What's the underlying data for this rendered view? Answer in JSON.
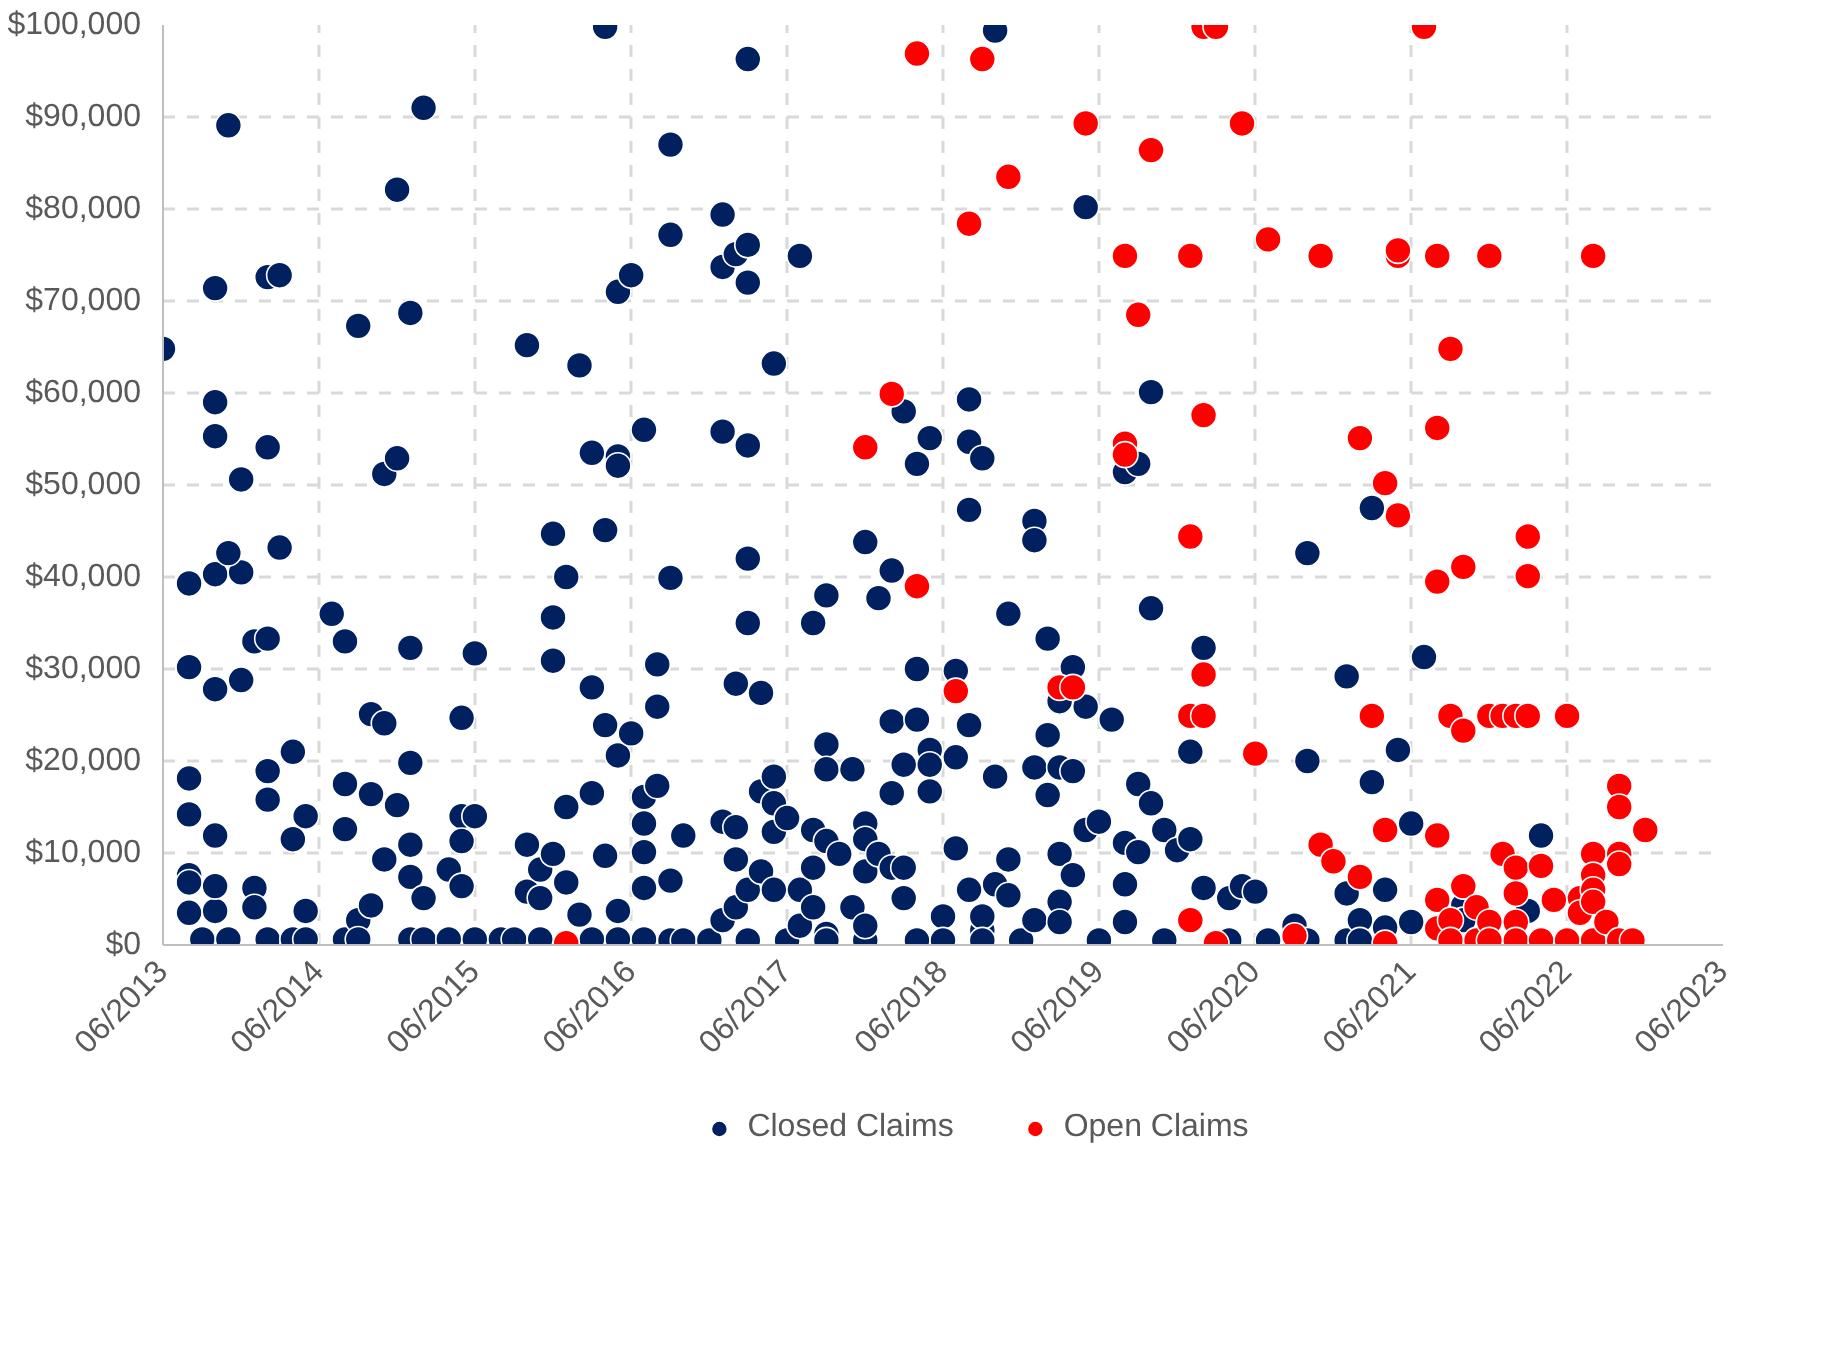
{
  "chart_data": {
    "type": "scatter",
    "xlim": [
      "2013-06",
      "2023-06"
    ],
    "xticks": [
      {
        "value": "2013-06",
        "label": "06/2013"
      },
      {
        "value": "2014-06",
        "label": "06/2014"
      },
      {
        "value": "2015-06",
        "label": "06/2015"
      },
      {
        "value": "2016-06",
        "label": "06/2016"
      },
      {
        "value": "2017-06",
        "label": "06/2017"
      },
      {
        "value": "2018-06",
        "label": "06/2018"
      },
      {
        "value": "2019-06",
        "label": "06/2019"
      },
      {
        "value": "2020-06",
        "label": "06/2020"
      },
      {
        "value": "2021-06",
        "label": "06/2021"
      },
      {
        "value": "2022-06",
        "label": "06/2022"
      },
      {
        "value": "2023-06",
        "label": "06/2023"
      }
    ],
    "ylim": [
      0,
      100000
    ],
    "yticks": [
      {
        "value": 0,
        "label": "$0"
      },
      {
        "value": 10000,
        "label": "$10,000"
      },
      {
        "value": 20000,
        "label": "$20,000"
      },
      {
        "value": 30000,
        "label": "$30,000"
      },
      {
        "value": 40000,
        "label": "$40,000"
      },
      {
        "value": 50000,
        "label": "$50,000"
      },
      {
        "value": 60000,
        "label": "$60,000"
      },
      {
        "value": 70000,
        "label": "$70,000"
      },
      {
        "value": 80000,
        "label": "$80,000"
      },
      {
        "value": 90000,
        "label": "$90,000"
      },
      {
        "value": 100000,
        "label": "$100,000"
      }
    ],
    "grid": true,
    "legend": "bottom",
    "marker": "circle",
    "series": [
      {
        "name": "Closed Claims",
        "color": "#002060",
        "x": [
          "2013-06",
          "2013-08",
          "2013-08",
          "2013-08",
          "2013-08",
          "2013-08",
          "2013-08",
          "2013-08",
          "2013-09",
          "2013-10",
          "2013-10",
          "2013-10",
          "2013-10",
          "2013-10",
          "2013-10",
          "2013-10",
          "2013-10",
          "2013-11",
          "2013-11",
          "2013-12",
          "2013-11",
          "2013-12",
          "2013-12",
          "2014-01",
          "2014-01",
          "2014-01",
          "2014-02",
          "2014-02",
          "2014-02",
          "2014-02",
          "2014-02",
          "2014-02",
          "2014-03",
          "2014-03",
          "2014-04",
          "2014-04",
          "2014-04",
          "2014-05",
          "2014-05",
          "2014-05",
          "2014-07",
          "2014-08",
          "2014-08",
          "2014-08",
          "2014-08",
          "2014-09",
          "2014-09",
          "2014-09",
          "2014-10",
          "2014-10",
          "2014-10",
          "2014-11",
          "2014-11",
          "2014-11",
          "2014-12",
          "2014-12",
          "2014-12",
          "2015-01",
          "2015-01",
          "2015-01",
          "2015-01",
          "2015-01",
          "2015-01",
          "2015-02",
          "2015-02",
          "2015-02",
          "2015-04",
          "2015-04",
          "2015-05",
          "2015-05",
          "2015-05",
          "2015-05",
          "2015-06",
          "2015-06",
          "2015-06",
          "2015-08",
          "2015-09",
          "2015-10",
          "2015-10",
          "2015-10",
          "2015-11",
          "2015-11",
          "2015-11",
          "2015-12",
          "2015-12",
          "2015-12",
          "2015-12",
          "2016-01",
          "2016-01",
          "2016-01",
          "2016-02",
          "2016-02",
          "2016-03",
          "2016-03",
          "2016-03",
          "2016-03",
          "2016-04",
          "2016-04",
          "2016-04",
          "2016-04",
          "2016-05",
          "2016-05",
          "2016-05",
          "2016-05",
          "2016-05",
          "2016-05",
          "2016-06",
          "2016-06",
          "2016-07",
          "2016-07",
          "2016-07",
          "2016-07",
          "2016-07",
          "2016-07",
          "2016-08",
          "2016-08",
          "2016-08",
          "2016-09",
          "2016-09",
          "2016-09",
          "2016-09",
          "2016-09",
          "2016-10",
          "2016-10",
          "2016-12",
          "2017-01",
          "2017-01",
          "2017-01",
          "2017-01",
          "2017-01",
          "2017-02",
          "2017-02",
          "2017-02",
          "2017-02",
          "2017-02",
          "2017-03",
          "2017-03",
          "2017-03",
          "2017-03",
          "2017-03",
          "2017-03",
          "2017-03",
          "2017-03",
          "2017-04",
          "2017-04",
          "2017-04",
          "2017-05",
          "2017-05",
          "2017-05",
          "2017-05",
          "2017-05",
          "2017-06",
          "2017-06",
          "2017-07",
          "2017-07",
          "2017-07",
          "2017-08",
          "2017-08",
          "2017-08",
          "2017-08",
          "2017-09",
          "2017-09",
          "2017-09",
          "2017-09",
          "2017-09",
          "2017-09",
          "2017-10",
          "2017-11",
          "2017-11",
          "2017-12",
          "2017-12",
          "2017-12",
          "2017-12",
          "2017-12",
          "2017-12",
          "2018-01",
          "2018-01",
          "2018-02",
          "2018-02",
          "2018-02",
          "2018-02",
          "2018-03",
          "2018-03",
          "2018-03",
          "2018-03",
          "2018-04",
          "2018-04",
          "2018-04",
          "2018-04",
          "2018-05",
          "2018-05",
          "2018-05",
          "2018-05",
          "2018-06",
          "2018-06",
          "2018-07",
          "2018-07",
          "2018-07",
          "2018-08",
          "2018-08",
          "2018-08",
          "2018-08",
          "2018-08",
          "2018-09",
          "2018-09",
          "2018-09",
          "2018-09",
          "2018-10",
          "2018-10",
          "2018-10",
          "2018-11",
          "2018-11",
          "2018-11",
          "2018-12",
          "2019-01",
          "2019-01",
          "2019-01",
          "2019-01",
          "2019-02",
          "2019-02",
          "2019-02",
          "2019-03",
          "2019-03",
          "2019-03",
          "2019-03",
          "2019-03",
          "2019-04",
          "2019-04",
          "2019-04",
          "2019-05",
          "2019-05",
          "2019-05",
          "2019-06",
          "2019-06",
          "2019-07",
          "2019-08",
          "2019-08",
          "2019-08",
          "2019-08",
          "2019-09",
          "2019-09",
          "2019-09",
          "2019-10",
          "2019-10",
          "2019-10",
          "2019-11",
          "2019-11",
          "2019-12",
          "2020-01",
          "2020-01",
          "2020-02",
          "2020-02",
          "2020-04",
          "2020-04",
          "2020-05",
          "2020-06",
          "2020-07",
          "2020-09",
          "2020-10",
          "2020-10",
          "2020-10",
          "2021-01",
          "2021-01",
          "2021-01",
          "2021-02",
          "2021-02",
          "2021-03",
          "2021-03",
          "2021-04",
          "2021-04",
          "2021-05",
          "2021-06",
          "2021-06",
          "2021-07",
          "2021-10",
          "2021-10",
          "2022-03",
          "2022-04"
        ],
        "values": [
          64800,
          39300,
          30200,
          18100,
          14200,
          7600,
          3500,
          6800,
          600,
          11900,
          40300,
          27800,
          3700,
          55300,
          59000,
          71400,
          6400,
          600,
          89100,
          40500,
          42600,
          50600,
          28800,
          6200,
          33000,
          4100,
          600,
          33300,
          54100,
          18900,
          72600,
          15800,
          43200,
          72800,
          21000,
          600,
          11500,
          14000,
          3700,
          600,
          36000,
          33000,
          17500,
          600,
          12600,
          67300,
          2700,
          600,
          25100,
          16400,
          4300,
          51200,
          9300,
          24100,
          82100,
          15200,
          52900,
          32300,
          19800,
          10900,
          600,
          68700,
          7400,
          5100,
          91000,
          600,
          8200,
          600,
          24700,
          14000,
          11300,
          6400,
          600,
          31700,
          14000,
          600,
          600,
          5800,
          65200,
          10900,
          8200,
          600,
          5100,
          9900,
          30900,
          35600,
          44700,
          40000,
          15000,
          6800,
          3300,
          63000,
          53500,
          600,
          28000,
          16500,
          9700,
          99800,
          45100,
          23900,
          53100,
          20600,
          52100,
          71000,
          3700,
          600,
          72800,
          23000,
          13200,
          16100,
          10100,
          6200,
          56000,
          600,
          30500,
          25900,
          17300,
          39900,
          77200,
          7000,
          500,
          87000,
          500,
          11900,
          500,
          79400,
          73700,
          2700,
          13400,
          55800,
          75100,
          4100,
          28400,
          9300,
          12800,
          76100,
          500,
          96300,
          35000,
          72000,
          42000,
          54300,
          6000,
          27400,
          16700,
          8000,
          63200,
          12300,
          6000,
          18300,
          15400,
          500,
          13800,
          2100,
          74900,
          6000,
          8400,
          35000,
          12500,
          4100,
          21800,
          19100,
          1200,
          38000,
          11300,
          500,
          9900,
          4100,
          19100,
          500,
          13200,
          8000,
          2100,
          43800,
          11500,
          37700,
          9900,
          24300,
          16500,
          40700,
          8400,
          58000,
          5100,
          8400,
          19600,
          500,
          30000,
          24500,
          52300,
          55100,
          21200,
          19600,
          16700,
          3100,
          500,
          10500,
          20400,
          29800,
          23900,
          59300,
          54700,
          47300,
          6000,
          1600,
          3100,
          500,
          52900,
          6600,
          99400,
          18300,
          9300,
          36000,
          5400,
          500,
          2700,
          46100,
          19300,
          44000,
          22800,
          33300,
          16300,
          26500,
          19300,
          9900,
          4700,
          2500,
          18900,
          7600,
          30200,
          25900,
          12500,
          80200,
          500,
          13400,
          24500,
          51400,
          11100,
          6600,
          2500,
          17500,
          10100,
          52300,
          60100,
          36600,
          15400,
          12500,
          500,
          10300,
          21000,
          11500,
          6200,
          32300,
          5100,
          500,
          6400,
          5800,
          500,
          2100,
          42600,
          20000,
          500,
          500,
          5600,
          29200,
          2700,
          500,
          47500,
          17700,
          6000,
          1900,
          21200,
          13200,
          2500,
          31300,
          4300,
          2700,
          3700,
          11900
        ]
      },
      {
        "name": "Open Claims",
        "color": "#ff0000",
        "x": [
          "2016-01",
          "2017-12",
          "2018-02",
          "2018-04",
          "2018-04",
          "2018-07",
          "2018-08",
          "2018-09",
          "2018-11",
          "2019-03",
          "2019-04",
          "2019-05",
          "2019-08",
          "2019-08",
          "2019-08",
          "2019-09",
          "2019-10",
          "2020-01",
          "2020-01",
          "2020-01",
          "2020-01",
          "2020-02",
          "2020-02",
          "2020-02",
          "2020-03",
          "2020-02",
          "2020-03",
          "2020-05",
          "2020-06",
          "2020-07",
          "2020-09",
          "2020-11",
          "2020-11",
          "2020-12",
          "2021-02",
          "2021-02",
          "2021-03",
          "2021-04",
          "2021-04",
          "2021-04",
          "2021-05",
          "2021-05",
          "2021-05",
          "2021-07",
          "2021-08",
          "2021-08",
          "2021-08",
          "2021-08",
          "2021-08",
          "2021-08",
          "2021-09",
          "2021-09",
          "2021-09",
          "2021-09",
          "2021-10",
          "2021-10",
          "2021-10",
          "2021-11",
          "2021-11",
          "2021-12",
          "2021-12",
          "2021-12",
          "2021-12",
          "2022-01",
          "2022-01",
          "2022-02",
          "2022-02",
          "2022-02",
          "2022-02",
          "2022-02",
          "2022-03",
          "2022-03",
          "2022-03",
          "2022-04",
          "2022-04",
          "2022-05",
          "2022-06",
          "2022-06",
          "2022-07",
          "2022-07",
          "2022-08",
          "2022-08",
          "2022-08",
          "2022-08",
          "2022-08",
          "2022-08",
          "2022-09",
          "2022-10",
          "2022-10",
          "2022-10",
          "2022-10",
          "2022-10",
          "2022-11",
          "2022-12"
        ],
        "values": [
          200,
          54100,
          59900,
          39000,
          96900,
          27600,
          78400,
          96300,
          83500,
          28000,
          28000,
          89300,
          54500,
          53300,
          74900,
          68500,
          86400,
          44400,
          2700,
          74900,
          24900,
          29400,
          57600,
          99800,
          200,
          24900,
          99800,
          89300,
          20800,
          76700,
          1000,
          74900,
          10900,
          9100,
          7400,
          55100,
          24900,
          50200,
          12500,
          200,
          74900,
          46700,
          75500,
          99800,
          74900,
          1800,
          56200,
          11900,
          4900,
          39500,
          24900,
          2700,
          500,
          64800,
          41100,
          23300,
          6400,
          500,
          4100,
          24900,
          2500,
          500,
          74900,
          24900,
          9900,
          8400,
          5600,
          2500,
          500,
          24900,
          24900,
          44400,
          40100,
          8600,
          500,
          4900,
          24900,
          500,
          5100,
          3500,
          9900,
          7600,
          500,
          6000,
          74900,
          4700,
          2500,
          17300,
          9900,
          500,
          15000,
          8800,
          500,
          12500
        ]
      }
    ]
  }
}
